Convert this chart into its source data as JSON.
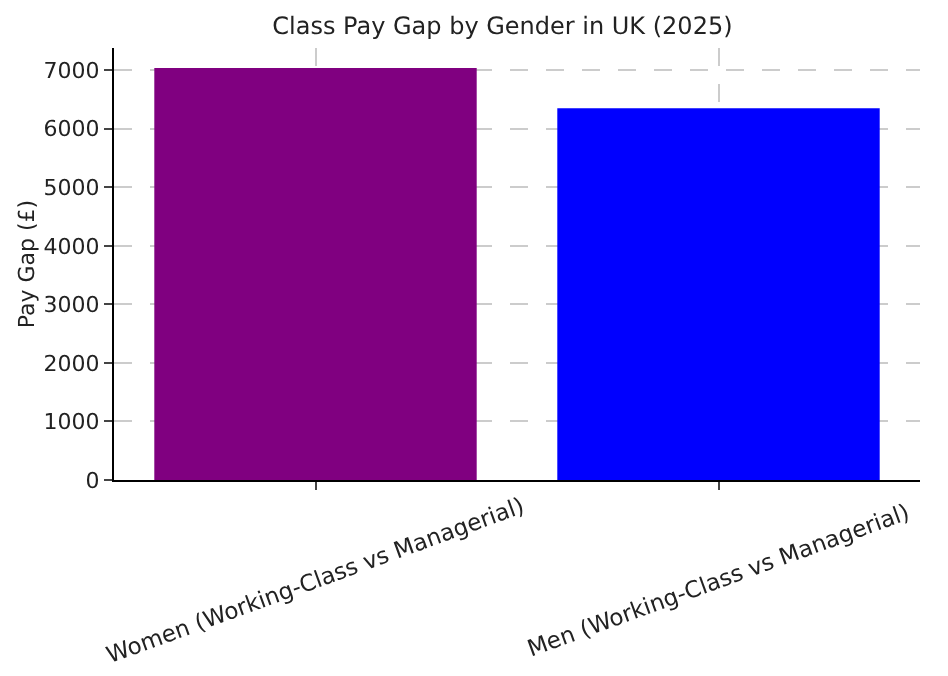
{
  "chart_data": {
    "type": "bar",
    "title": "Class Pay Gap by Gender in UK (2025)",
    "ylabel": "Pay Gap (£)",
    "categories": [
      "Women (Working-Class vs Managerial)",
      "Men (Working-Class vs Managerial)"
    ],
    "values": [
      7040,
      6350
    ],
    "colors": [
      "#800080",
      "#0000ff"
    ],
    "ylim": [
      0,
      7380
    ],
    "yticks": [
      0,
      1000,
      2000,
      3000,
      4000,
      5000,
      6000,
      7000
    ],
    "grid": true
  }
}
